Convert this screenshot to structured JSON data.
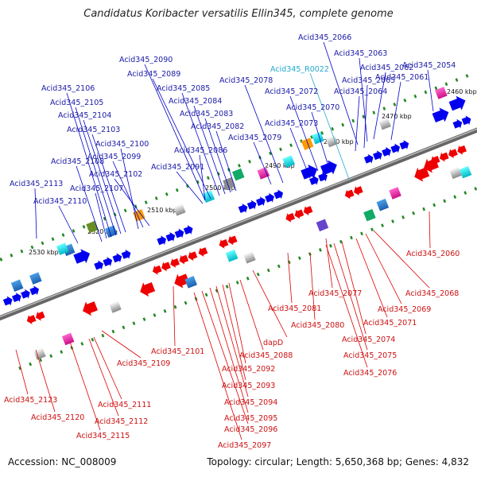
{
  "title": "Candidatus Koribacter versatilis Ellin345, complete genome",
  "footer": {
    "accession": "Accession: NC_008009",
    "summary": "Topology: circular; Length: 5,650,368 bp; Genes: 4,832"
  },
  "colors": {
    "forward_label": "#1a1aa8",
    "reverse_label": "#cc1111",
    "rna_label": "#22aacc",
    "backbone": "#888888"
  },
  "scale_labels": [
    "2460 kbp",
    "2470 kbp",
    "2480 kbp",
    "2490 kbp",
    "2500 kbp",
    "2510 kbp",
    "2520 kbp",
    "2530 kbp"
  ],
  "forward_labels": [
    "Acid345_2066",
    "Acid345_2063",
    "Acid345_2062",
    "Acid345_2054",
    "Acid345_2065",
    "Acid345_2061",
    "Acid345_2064",
    "Acid345_2090",
    "Acid345_2089",
    "Acid345_2078",
    "Acid345_2072",
    "Acid345_2070",
    "Acid345_2085",
    "Acid345_2084",
    "Acid345_2083",
    "Acid345_2082",
    "Acid345_2073",
    "Acid345_2079",
    "Acid345_2106",
    "Acid345_2105",
    "Acid345_2104",
    "Acid345_2103",
    "Acid345_2100",
    "Acid345_2086",
    "Acid345_2099",
    "Acid345_2091",
    "Acid345_2108",
    "Acid345_2102",
    "Acid345_2113",
    "Acid345_2107",
    "Acid345_2110"
  ],
  "rna_labels": [
    "Acid345_R0022"
  ],
  "reverse_labels": [
    "Acid345_2060",
    "Acid345_2068",
    "Acid345_2077",
    "Acid345_2069",
    "Acid345_2081",
    "Acid345_2071",
    "Acid345_2080",
    "Acid345_2074",
    "Acid345_2075",
    "Acid345_2076",
    "dapD",
    "Acid345_2101",
    "Acid345_2088",
    "Acid345_2109",
    "Acid345_2092",
    "Acid345_2093",
    "Acid345_2094",
    "Acid345_2123",
    "Acid345_2111",
    "Acid345_2120",
    "Acid345_2112",
    "Acid345_2095",
    "Acid345_2096",
    "Acid345_2115",
    "Acid345_2097"
  ]
}
